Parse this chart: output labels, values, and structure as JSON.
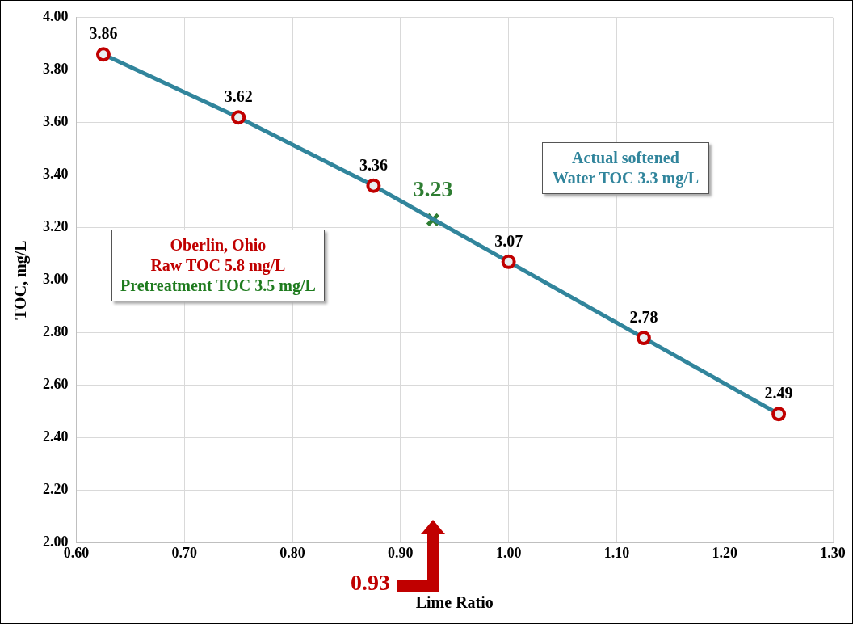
{
  "chart_data": {
    "type": "line",
    "xlabel": "Lime Ratio",
    "ylabel": "TOC, mg/L",
    "xlim": [
      0.6,
      1.3
    ],
    "xticks": [
      {
        "value": 0.6,
        "label": "0.60"
      },
      {
        "value": 0.7,
        "label": "0.70"
      },
      {
        "value": 0.8,
        "label": "0.80"
      },
      {
        "value": 0.9,
        "label": "0.90"
      },
      {
        "value": 1.0,
        "label": "1.00"
      },
      {
        "value": 1.1,
        "label": "1.10"
      },
      {
        "value": 1.2,
        "label": "1.20"
      },
      {
        "value": 1.3,
        "label": "1.30"
      }
    ],
    "ylim": [
      2.0,
      4.0
    ],
    "yticks": [
      {
        "value": 2.0,
        "label": "2.00"
      },
      {
        "value": 2.2,
        "label": "2.20"
      },
      {
        "value": 2.4,
        "label": "2.40"
      },
      {
        "value": 2.6,
        "label": "2.60"
      },
      {
        "value": 2.8,
        "label": "2.80"
      },
      {
        "value": 3.0,
        "label": "3.00"
      },
      {
        "value": 3.2,
        "label": "3.20"
      },
      {
        "value": 3.4,
        "label": "3.40"
      },
      {
        "value": 3.6,
        "label": "3.60"
      },
      {
        "value": 3.8,
        "label": "3.80"
      },
      {
        "value": 4.0,
        "label": "4.00"
      }
    ],
    "series": [
      {
        "type": "line",
        "color": "#31859c",
        "colors": [
          "#c00000",
          "#c00000",
          "#c00000",
          "#c00000",
          "#c00000",
          "#c00000"
        ],
        "x": [
          0.625,
          0.75,
          0.875,
          1.0,
          1.125,
          1.25
        ],
        "values": [
          3.86,
          3.62,
          3.36,
          3.07,
          2.78,
          2.49
        ],
        "marker": "circle"
      },
      {
        "type": "scatter",
        "color": "#2e7d32",
        "x": [
          0.93
        ],
        "values": [
          3.23
        ],
        "marker": "cross"
      }
    ],
    "data_labels": true,
    "grid": true,
    "legend": false,
    "annotations": [
      "Oberlin, Ohio",
      "Raw TOC 5.8 mg/L",
      "Pretreatment TOC 3.5 mg/L",
      "Actual softened Water TOC 3.3 mg/L",
      "0.93"
    ]
  }
}
